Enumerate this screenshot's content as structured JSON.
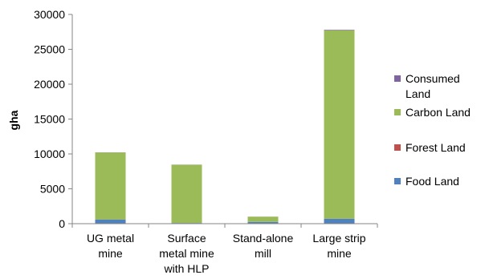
{
  "chart_data": {
    "type": "bar",
    "stacked": true,
    "title": "",
    "xlabel": "",
    "ylabel": "gha",
    "ylim": [
      0,
      30000
    ],
    "yticks": [
      0,
      5000,
      10000,
      15000,
      20000,
      25000,
      30000
    ],
    "grid": false,
    "legend_position": "right",
    "categories": [
      [
        "UG metal",
        "mine"
      ],
      [
        "Surface",
        "metal mine",
        "with HLP"
      ],
      [
        "Stand-alone",
        "mill"
      ],
      [
        "Large strip",
        "mine"
      ]
    ],
    "series": [
      {
        "name": "Food Land",
        "label_lines": [
          "Food Land"
        ],
        "color": "#4f81bd",
        "values": [
          600,
          100,
          250,
          700
        ]
      },
      {
        "name": "Forest Land",
        "label_lines": [
          "Forest Land"
        ],
        "color": "#c0504d",
        "values": [
          10,
          5,
          5,
          20
        ]
      },
      {
        "name": "Carbon Land",
        "label_lines": [
          "Carbon Land"
        ],
        "color": "#9bbb59",
        "values": [
          9600,
          8350,
          750,
          27000
        ]
      },
      {
        "name": "Consumed Land",
        "label_lines": [
          "Consumed",
          "Land"
        ],
        "color": "#8064a2",
        "values": [
          20,
          10,
          5,
          80
        ]
      }
    ]
  }
}
